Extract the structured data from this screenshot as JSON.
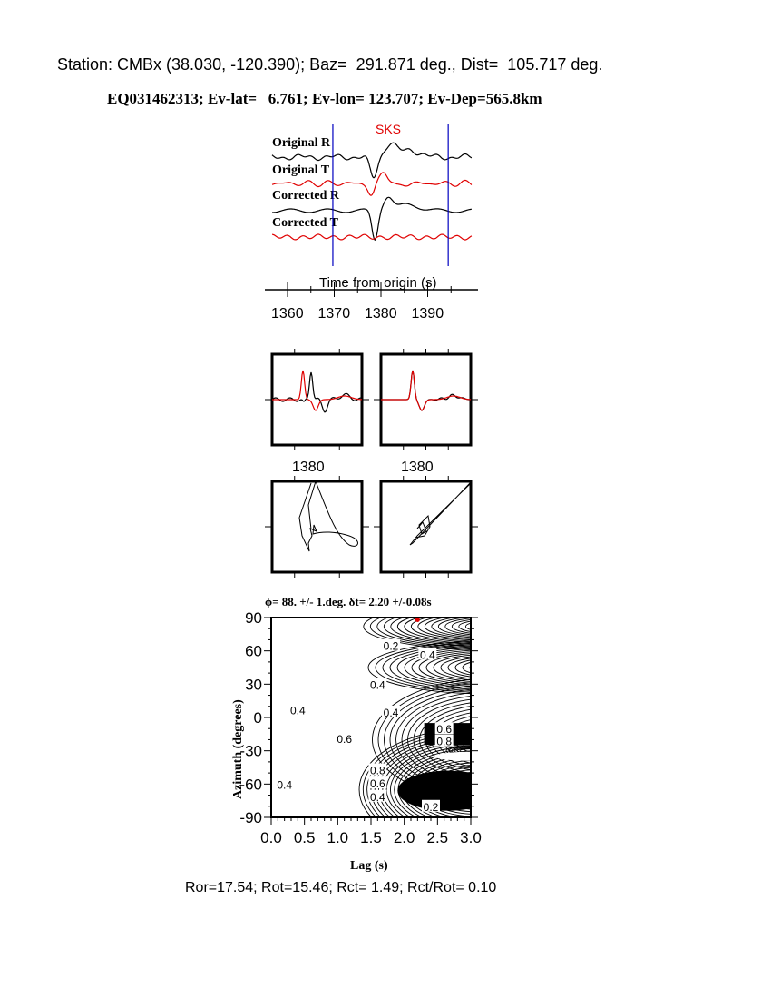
{
  "header": {
    "station_line": "Station: CMBx (38.030, -120.390); Baz=  291.871 deg., Dist=  105.717 deg.",
    "event_line": "EQ031462313; Ev-lat=   6.761; Ev-lon= 123.707; Ev-Dep=565.8km"
  },
  "colors": {
    "black": "#000000",
    "red": "#e00000",
    "window_lines": "#0000c0"
  },
  "chart_data": [
    {
      "type": "line",
      "title": "",
      "phase_label": "SKS",
      "trace_labels": [
        "Original R",
        "Original T",
        "Corrected R",
        "Corrected T"
      ],
      "trace_colors": [
        "#000000",
        "#e00000",
        "#000000",
        "#e00000"
      ],
      "xlabel": "Time from origin (s)",
      "x_ticks": [
        "1360",
        "1370",
        "1380",
        "1390"
      ],
      "xlim": [
        1356.7,
        1399.4
      ],
      "analysis_window": [
        1369.7,
        1394.4
      ]
    },
    {
      "type": "line",
      "panels": [
        "fast/slow before correction",
        "fast/slow after correction"
      ],
      "x_tick_label": "1380"
    },
    {
      "type": "scatter",
      "panels": [
        "particle motion before",
        "particle motion after"
      ]
    },
    {
      "type": "heatmap",
      "title": "ϕ= 88. +/- 1.deg. δt= 2.20 +/-0.08s",
      "xlabel": "Lag (s)",
      "ylabel": "Azimuth (degrees)",
      "xlim": [
        0,
        3
      ],
      "ylim": [
        -90,
        90
      ],
      "x_ticks": [
        "0.0",
        "0.5",
        "1.0",
        "1.5",
        "2.0",
        "2.5",
        "3.0"
      ],
      "y_ticks": [
        "90",
        "60",
        "30",
        "0",
        "-30",
        "-60",
        "-90"
      ],
      "best_fit": {
        "lag": 2.2,
        "azimuth": 88
      },
      "contour_labels": [
        {
          "text": "0.2",
          "lag": 1.8,
          "az": 65
        },
        {
          "text": "0.4",
          "lag": 2.35,
          "az": 57
        },
        {
          "text": "0.4",
          "lag": 1.6,
          "az": 30
        },
        {
          "text": "0.4",
          "lag": 0.4,
          "az": 7
        },
        {
          "text": "0.4",
          "lag": 1.8,
          "az": 5
        },
        {
          "text": "0.6",
          "lag": 2.6,
          "az": -10
        },
        {
          "text": "0.8",
          "lag": 2.6,
          "az": -21
        },
        {
          "text": "0.6",
          "lag": 1.1,
          "az": -19
        },
        {
          "text": "0.8",
          "lag": 1.6,
          "az": -47
        },
        {
          "text": "0.6",
          "lag": 1.6,
          "az": -59
        },
        {
          "text": "0.4",
          "lag": 1.6,
          "az": -71
        },
        {
          "text": "0.2",
          "lag": 2.4,
          "az": -80
        },
        {
          "text": "0.4",
          "lag": 0.2,
          "az": -60
        }
      ]
    }
  ],
  "footer": {
    "ratios": "Ror=17.54; Rot=15.46; Rct= 1.49; Rct/Rot= 0.10"
  }
}
